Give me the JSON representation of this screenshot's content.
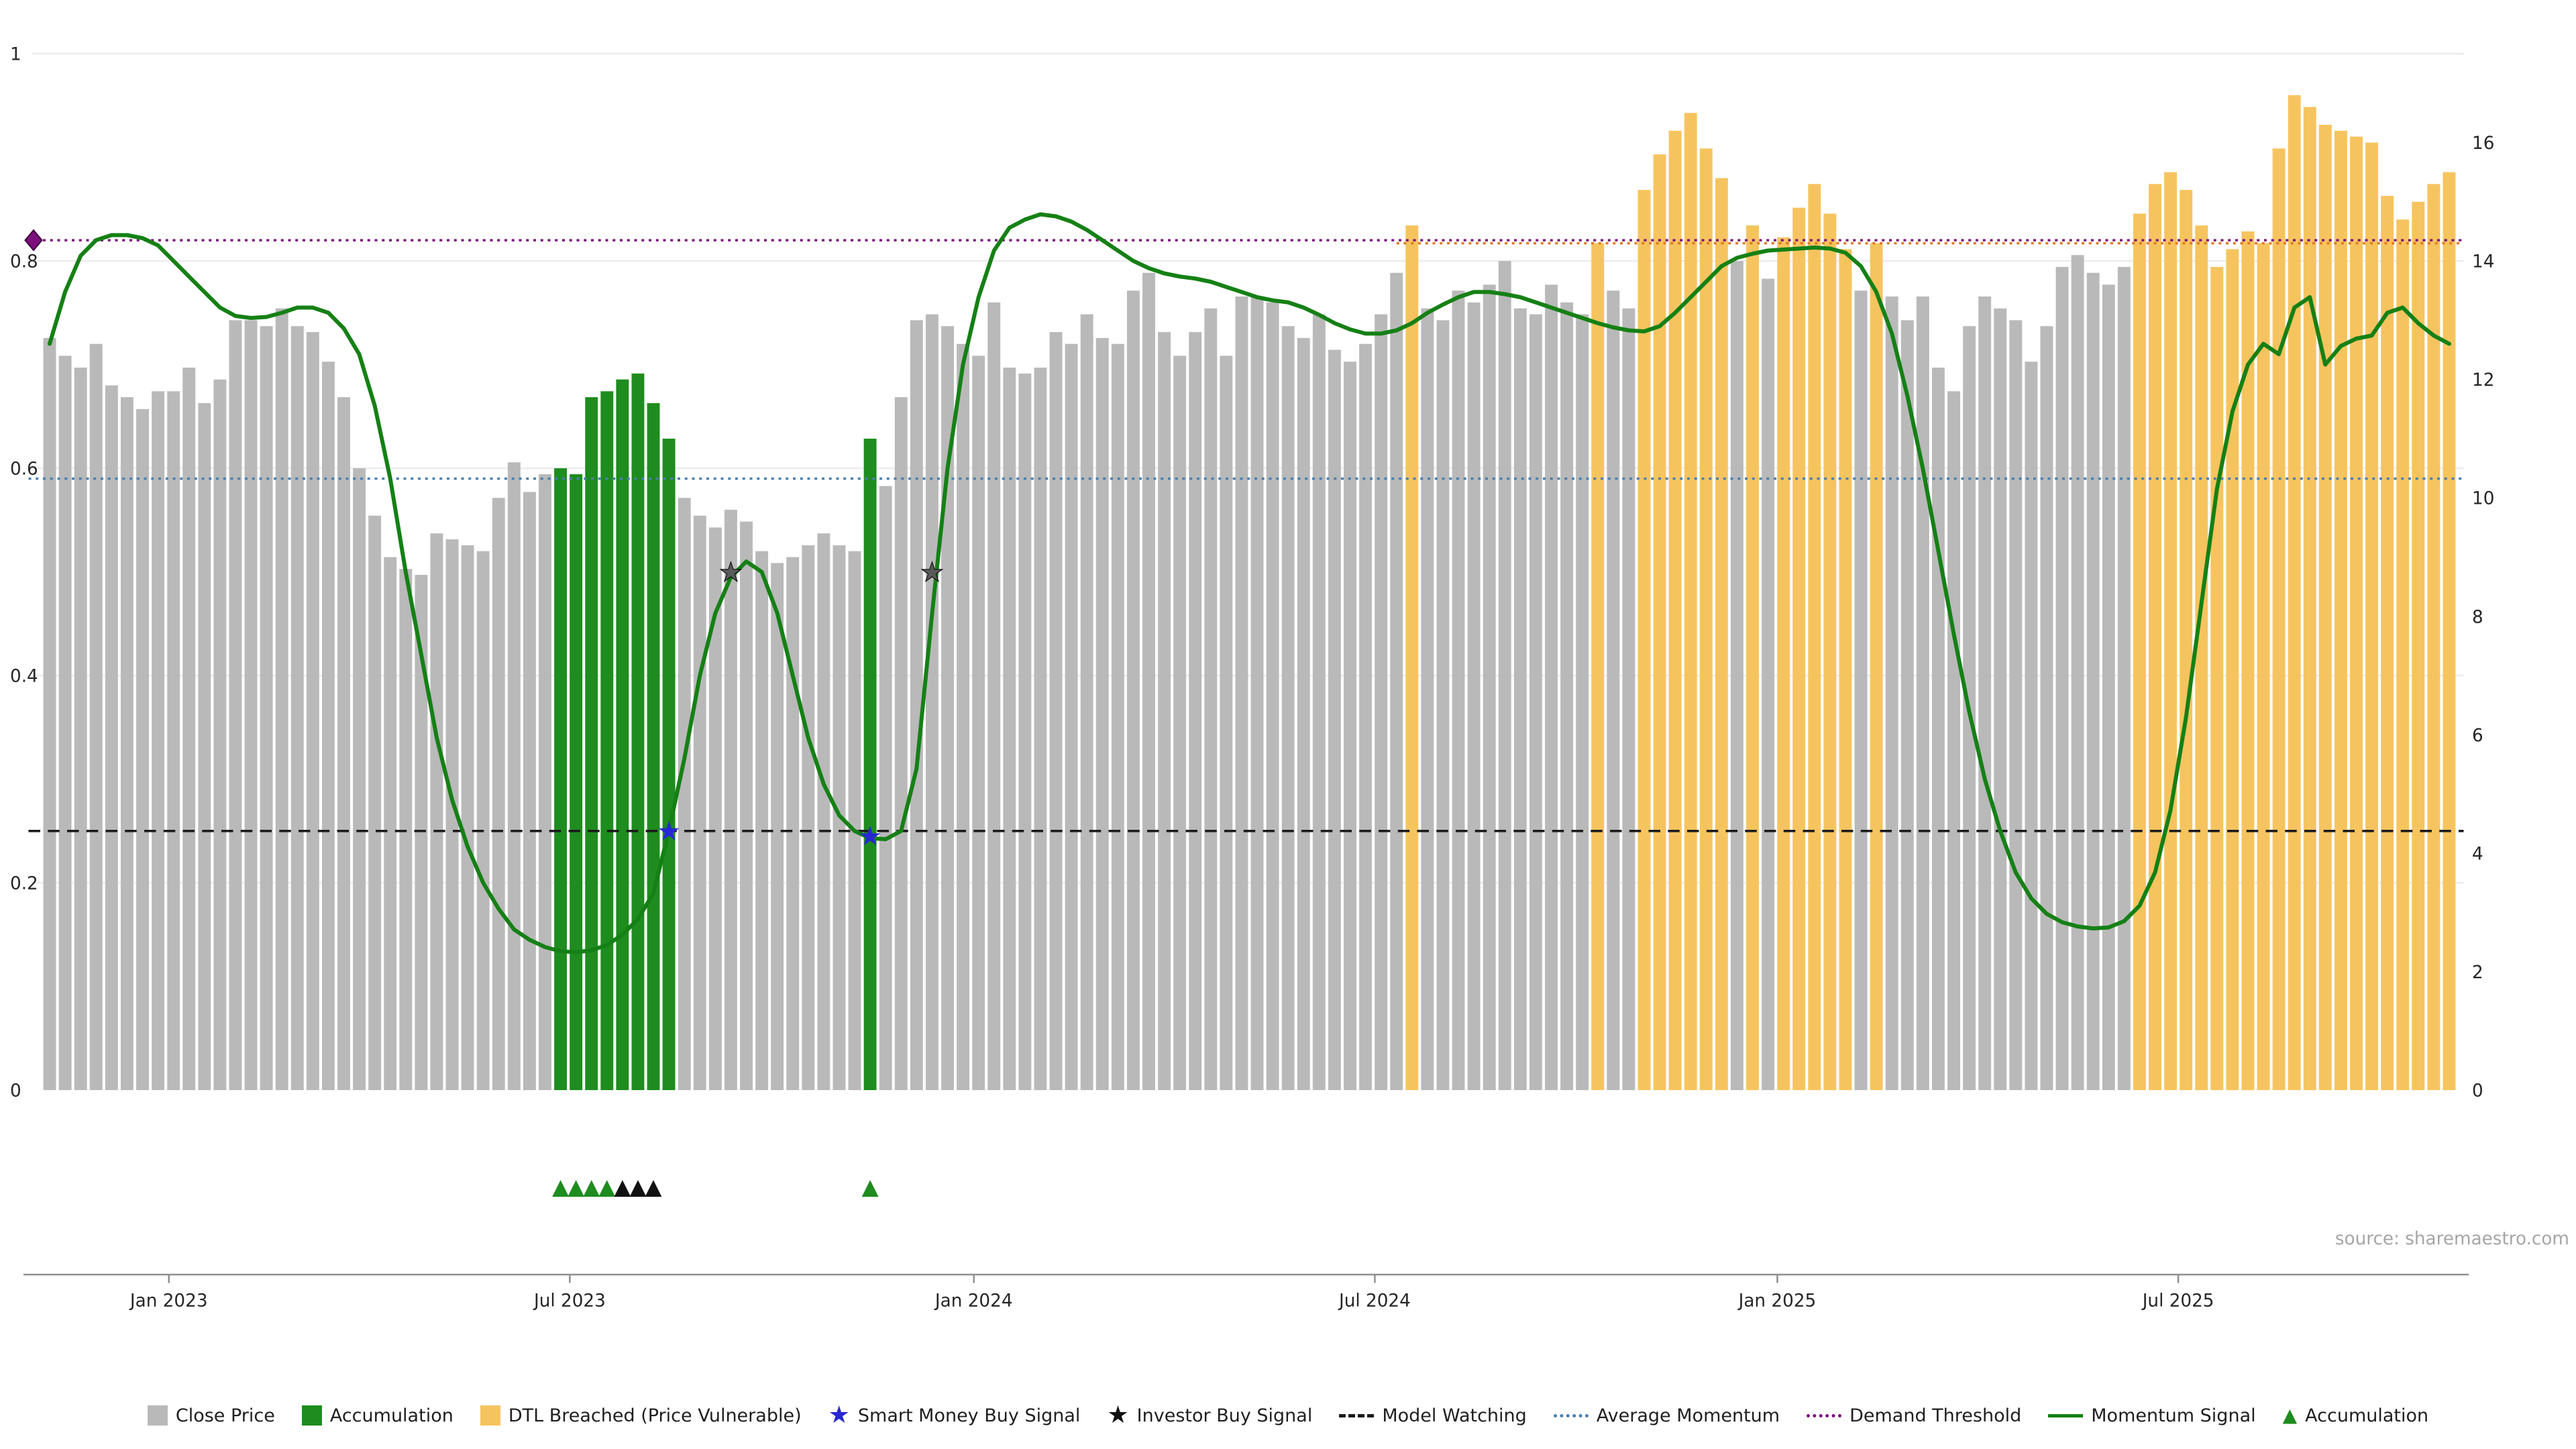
{
  "source": "source: sharemaestro.com",
  "chart_data": {
    "type": "bar+line",
    "title": "",
    "xlabel": "",
    "ylabel": "",
    "grid": "faint-horizontal",
    "legend_position": "bottom-center",
    "left_axis": {
      "range": [
        0,
        1
      ],
      "ticks": [
        0,
        0.2,
        0.4,
        0.6,
        0.8,
        1
      ],
      "labels": [
        "0",
        "0.2",
        "0.4",
        "0.6",
        "0.8",
        "1"
      ]
    },
    "right_axis": {
      "range": [
        0,
        17.5
      ],
      "ticks": [
        0,
        2,
        4,
        6,
        8,
        10,
        12,
        14,
        16
      ],
      "labels": [
        "0",
        "2",
        "4",
        "6",
        "8",
        "10",
        "12",
        "14",
        "16"
      ]
    },
    "x_ticks": [
      {
        "label": "Jan 2023",
        "index": 7.7
      },
      {
        "label": "Jul 2023",
        "index": 33.6
      },
      {
        "label": "Jan 2024",
        "index": 59.7
      },
      {
        "label": "Jul 2024",
        "index": 85.6
      },
      {
        "label": "Jan 2025",
        "index": 111.6
      },
      {
        "label": "Jul 2025",
        "index": 137.5
      }
    ],
    "bars": {
      "name": "Close Price",
      "axis": "right",
      "values": [
        12.7,
        12.4,
        12.2,
        12.6,
        11.9,
        11.7,
        11.5,
        11.8,
        11.8,
        12.2,
        11.6,
        12.0,
        13.0,
        13.0,
        12.9,
        13.2,
        12.9,
        12.8,
        12.3,
        11.7,
        10.5,
        9.7,
        9.0,
        8.8,
        8.7,
        9.4,
        9.3,
        9.2,
        9.1,
        10.0,
        10.6,
        10.1,
        10.4,
        10.5,
        10.4,
        11.7,
        11.8,
        12.0,
        12.1,
        11.6,
        11.0,
        10.0,
        9.7,
        9.5,
        9.8,
        9.6,
        9.1,
        8.9,
        9.0,
        9.2,
        9.4,
        9.2,
        9.1,
        11.0,
        10.2,
        11.7,
        13.0,
        13.1,
        12.9,
        12.6,
        12.4,
        13.3,
        12.2,
        12.1,
        12.2,
        12.8,
        12.6,
        13.1,
        12.7,
        12.6,
        13.5,
        13.8,
        12.8,
        12.4,
        12.8,
        13.2,
        12.4,
        13.4,
        13.4,
        13.3,
        12.9,
        12.7,
        13.1,
        12.5,
        12.3,
        12.6,
        13.1,
        13.8,
        14.6,
        13.2,
        13.0,
        13.5,
        13.3,
        13.6,
        14.0,
        13.2,
        13.1,
        13.6,
        13.3,
        13.1,
        14.3,
        13.5,
        13.2,
        15.2,
        15.8,
        16.2,
        16.5,
        15.9,
        15.4,
        14.0,
        14.6,
        13.7,
        14.4,
        14.9,
        15.3,
        14.8,
        14.2,
        13.5,
        14.3,
        13.4,
        13.0,
        13.4,
        12.2,
        11.8,
        12.9,
        13.4,
        13.2,
        13.0,
        12.3,
        12.9,
        13.9,
        14.1,
        13.8,
        13.6,
        13.9,
        14.8,
        15.3,
        15.5,
        15.2,
        14.6,
        13.9,
        14.2,
        14.5,
        14.3,
        15.9,
        16.8,
        16.6,
        16.3,
        16.2,
        16.1,
        16.0,
        15.1,
        14.7,
        15.0,
        15.3,
        15.5
      ],
      "accumulation_indices": [
        33,
        34,
        35,
        36,
        37,
        38,
        39,
        40,
        53
      ],
      "dtl_breached_indices": [
        88,
        100,
        103,
        104,
        105,
        106,
        107,
        108,
        110,
        112,
        113,
        114,
        115,
        116,
        118,
        135,
        136,
        137,
        138,
        139,
        140,
        141,
        142,
        143,
        144,
        145,
        146,
        147,
        148,
        149,
        150,
        151,
        152,
        153,
        154,
        155
      ]
    },
    "momentum": {
      "name": "Momentum Signal",
      "axis": "left",
      "values": [
        0.72,
        0.77,
        0.805,
        0.82,
        0.825,
        0.825,
        0.822,
        0.815,
        0.8,
        0.785,
        0.77,
        0.755,
        0.747,
        0.745,
        0.746,
        0.75,
        0.755,
        0.755,
        0.75,
        0.735,
        0.71,
        0.66,
        0.59,
        0.5,
        0.42,
        0.34,
        0.28,
        0.235,
        0.2,
        0.175,
        0.155,
        0.145,
        0.138,
        0.134,
        0.133,
        0.135,
        0.14,
        0.15,
        0.165,
        0.19,
        0.25,
        0.32,
        0.4,
        0.46,
        0.495,
        0.51,
        0.5,
        0.46,
        0.4,
        0.34,
        0.295,
        0.265,
        0.25,
        0.243,
        0.242,
        0.25,
        0.31,
        0.46,
        0.6,
        0.7,
        0.765,
        0.81,
        0.832,
        0.84,
        0.845,
        0.843,
        0.838,
        0.83,
        0.82,
        0.81,
        0.8,
        0.793,
        0.788,
        0.785,
        0.783,
        0.78,
        0.775,
        0.77,
        0.765,
        0.762,
        0.76,
        0.755,
        0.748,
        0.74,
        0.734,
        0.73,
        0.73,
        0.733,
        0.74,
        0.75,
        0.758,
        0.765,
        0.77,
        0.77,
        0.768,
        0.765,
        0.76,
        0.755,
        0.75,
        0.745,
        0.74,
        0.736,
        0.733,
        0.732,
        0.737,
        0.75,
        0.765,
        0.78,
        0.795,
        0.803,
        0.807,
        0.81,
        0.811,
        0.812,
        0.813,
        0.812,
        0.808,
        0.795,
        0.77,
        0.73,
        0.67,
        0.6,
        0.52,
        0.44,
        0.365,
        0.3,
        0.25,
        0.21,
        0.185,
        0.17,
        0.162,
        0.158,
        0.156,
        0.157,
        0.163,
        0.178,
        0.21,
        0.27,
        0.36,
        0.47,
        0.58,
        0.655,
        0.7,
        0.72,
        0.71,
        0.755,
        0.765,
        0.7,
        0.718,
        0.725,
        0.728,
        0.75,
        0.755,
        0.74,
        0.728,
        0.72
      ]
    },
    "thresholds": [
      {
        "name": "Model Watching",
        "value": 0.25,
        "color": "#1a1a1a",
        "style": "dashed"
      },
      {
        "name": "Average Momentum",
        "value": 0.59,
        "color": "#4a7fae",
        "style": "dotted"
      },
      {
        "name": "Demand Threshold",
        "value": 0.82,
        "color": "#7d0f7d",
        "style": "dotted"
      }
    ],
    "dtl_line": {
      "name": "DTL",
      "axis": "right",
      "value": 14.3,
      "from_index": 87,
      "color": "#e2791f",
      "style": "dotted"
    },
    "markers": {
      "demand_diamond": {
        "index": 0,
        "value": 0.82,
        "color": "#7d0f7d"
      },
      "smart_money_buy": {
        "color": "#2828d4",
        "points": [
          {
            "index": 40,
            "value": 0.25
          },
          {
            "index": 53,
            "value": 0.245
          }
        ]
      },
      "investor_buy": {
        "color": "#5a5a5a",
        "points": [
          {
            "index": 44,
            "value": 0.5
          },
          {
            "index": 57,
            "value": 0.5
          }
        ]
      },
      "accumulation_triangles": {
        "green": [
          33,
          34,
          35,
          36,
          53
        ],
        "black": [
          37,
          38,
          39
        ]
      }
    },
    "colors": {
      "close_price": "#b9b9b9",
      "accumulation": "#1e8c1e",
      "dtl_breached": "#f6c45f",
      "momentum": "#158015"
    }
  },
  "legend": {
    "items": [
      {
        "label": "Close Price",
        "marker": "square",
        "color": "#b9b9b9"
      },
      {
        "label": "Accumulation",
        "marker": "square",
        "color": "#1e8c1e"
      },
      {
        "label": "DTL Breached (Price Vulnerable)",
        "marker": "square",
        "color": "#f6c45f"
      },
      {
        "label": "Smart Money Buy Signal",
        "marker": "star",
        "color": "#2828d4"
      },
      {
        "label": "Investor Buy Signal",
        "marker": "star",
        "color": "#111111"
      },
      {
        "label": "Model Watching",
        "marker": "dashed-line",
        "color": "#1a1a1a"
      },
      {
        "label": "Average Momentum",
        "marker": "dotted-line",
        "color": "#4a7fae"
      },
      {
        "label": "Demand Threshold",
        "marker": "dotted-line",
        "color": "#7d0f7d"
      },
      {
        "label": "Momentum Signal",
        "marker": "solid-line",
        "color": "#158015"
      },
      {
        "label": "Accumulation",
        "marker": "triangle",
        "color": "#1e8c1e"
      }
    ]
  }
}
